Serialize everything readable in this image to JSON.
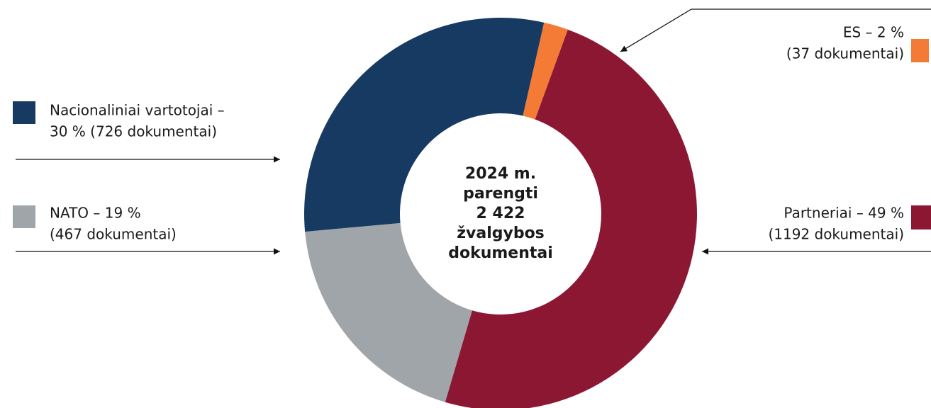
{
  "chart_data": {
    "type": "donut",
    "categories": [
      [
        "Partneriai – 49 %",
        "(1192 dokumentai)"
      ],
      [
        "NATO – 19 %",
        "(467 dokumentai)"
      ],
      [
        "Nacionaliniai vartotojai –",
        "30 % (726 dokumentai)"
      ],
      [
        "ES – 2 %",
        "(37 dokumentai)"
      ]
    ],
    "values": [
      49,
      19,
      30,
      2
    ],
    "colors": [
      "#8c1733",
      "#a0a5aa",
      "#173a63",
      "#f47b35"
    ],
    "center_text": [
      "2024 m.",
      "parengti",
      "2 422",
      "žvalgybos",
      "dokumentai"
    ]
  }
}
